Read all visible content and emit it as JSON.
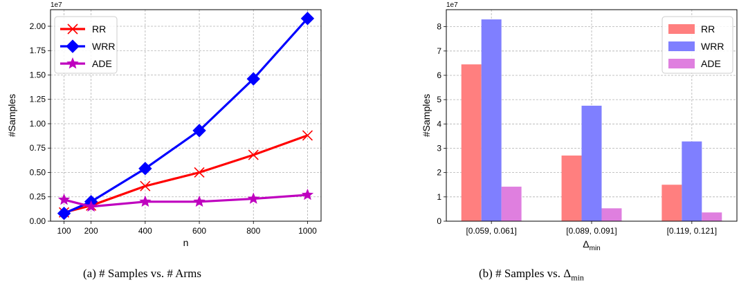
{
  "captions": {
    "a": "(a)  # Samples vs. # Arms",
    "b_prefix": "(b)  # Samples vs. Δ",
    "b_sub": "min"
  },
  "chart_data": [
    {
      "type": "line",
      "xlabel": "n",
      "ylabel": "#Samples",
      "y_multiplier": "1e7",
      "x": [
        100,
        200,
        400,
        600,
        800,
        1000
      ],
      "xticks": [
        100,
        200,
        400,
        600,
        800,
        1000
      ],
      "xlim": [
        50,
        1050
      ],
      "ylim": [
        0,
        2.17
      ],
      "yticks": [
        0.0,
        0.25,
        0.5,
        0.75,
        1.0,
        1.25,
        1.5,
        1.75,
        2.0
      ],
      "ytick_labels": [
        "0.00",
        "0.25",
        "0.50",
        "0.75",
        "1.00",
        "1.25",
        "1.50",
        "1.75",
        "2.00"
      ],
      "grid": true,
      "legend": "top-left",
      "series": [
        {
          "name": "RR",
          "color": "#ff0000",
          "marker": "x",
          "values": [
            0.09,
            0.16,
            0.36,
            0.5,
            0.68,
            0.88
          ]
        },
        {
          "name": "WRR",
          "color": "#0000ff",
          "marker": "diamond",
          "values": [
            0.08,
            0.2,
            0.54,
            0.93,
            1.46,
            2.08
          ]
        },
        {
          "name": "ADE",
          "color": "#bf00bf",
          "marker": "star",
          "values": [
            0.22,
            0.15,
            0.2,
            0.2,
            0.23,
            0.27
          ]
        }
      ]
    },
    {
      "type": "bar",
      "xlabel": "Δ",
      "xlabel_sub": "min",
      "ylabel": "#Samples",
      "y_multiplier": "1e7",
      "categories": [
        "[0.059, 0.061]",
        "[0.089, 0.091]",
        "[0.119, 0.121]"
      ],
      "ylim": [
        0,
        8.7
      ],
      "yticks": [
        0,
        1,
        2,
        3,
        4,
        5,
        6,
        7,
        8
      ],
      "ytick_labels": [
        "0",
        "1",
        "2",
        "3",
        "4",
        "5",
        "6",
        "7",
        "8"
      ],
      "grid": true,
      "legend": "top-right",
      "series": [
        {
          "name": "RR",
          "color": "#ff7f7f",
          "values": [
            6.45,
            2.7,
            1.5
          ]
        },
        {
          "name": "WRR",
          "color": "#7f7fff",
          "values": [
            8.3,
            4.75,
            3.28
          ]
        },
        {
          "name": "ADE",
          "color": "#df7fdf",
          "values": [
            1.42,
            0.53,
            0.36
          ]
        }
      ]
    }
  ]
}
